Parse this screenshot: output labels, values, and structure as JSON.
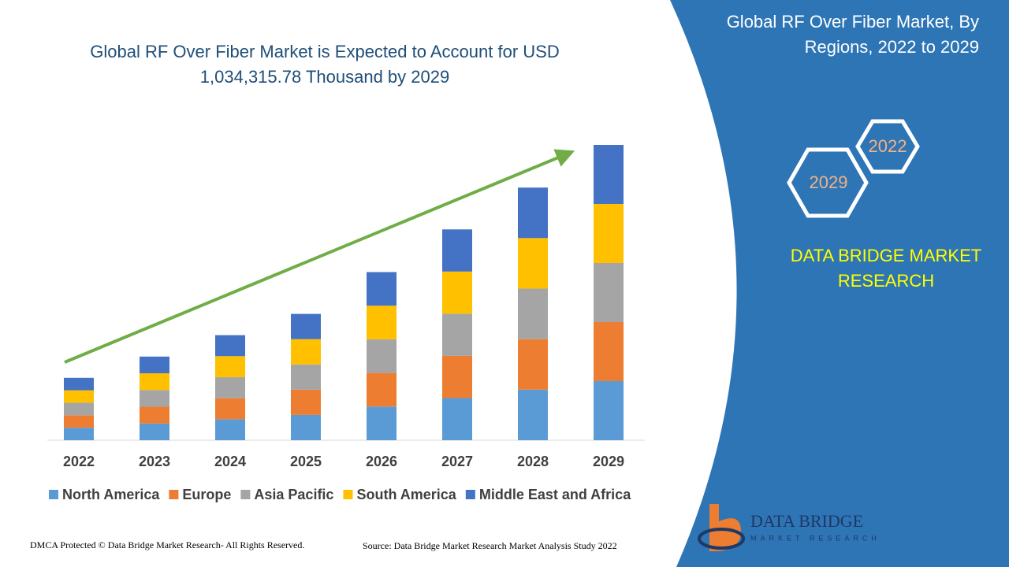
{
  "chart_data": {
    "type": "stacked_bar",
    "title": [
      "Global RF Over Fiber Market is Expected to Account for USD",
      "1,034,315.78 Thousand by 2029"
    ],
    "categories": [
      "2022",
      "2023",
      "2024",
      "2025",
      "2026",
      "2027",
      "2028",
      "2029"
    ],
    "series": [
      {
        "name": "North America",
        "color": "#5b9bd5",
        "values": [
          43700,
          58600,
          73600,
          88500,
          117800,
          147700,
          177000,
          206900
        ]
      },
      {
        "name": "Europe",
        "color": "#ed7d31",
        "values": [
          43700,
          58600,
          73600,
          88500,
          117800,
          147700,
          177000,
          206900
        ]
      },
      {
        "name": "Asia Pacific",
        "color": "#a5a5a5",
        "values": [
          43700,
          58600,
          73600,
          88500,
          117800,
          147700,
          177000,
          206900
        ]
      },
      {
        "name": "South America",
        "color": "#ffc000",
        "values": [
          43700,
          58600,
          73600,
          88500,
          117800,
          147700,
          177000,
          206900
        ]
      },
      {
        "name": "Middle East and Africa",
        "color": "#4472c4",
        "values": [
          43700,
          58600,
          73600,
          88500,
          117800,
          147700,
          177000,
          206900
        ]
      }
    ],
    "trend_arrow_color": "#70ad47"
  },
  "panel": {
    "title": [
      "Global RF Over Fiber Market, By",
      "Regions, 2022 to 2029"
    ],
    "hex_labels": [
      "2022",
      "2029"
    ],
    "brand": [
      "DATA BRIDGE MARKET",
      "RESEARCH"
    ],
    "logo": [
      "DATA BRIDGE",
      "MARKET RESEARCH"
    ]
  },
  "footer": {
    "left": "DMCA Protected © Data Bridge Market Research- All Rights Reserved.",
    "right": "Source: Data Bridge Market Research Market Analysis Study 2022"
  }
}
